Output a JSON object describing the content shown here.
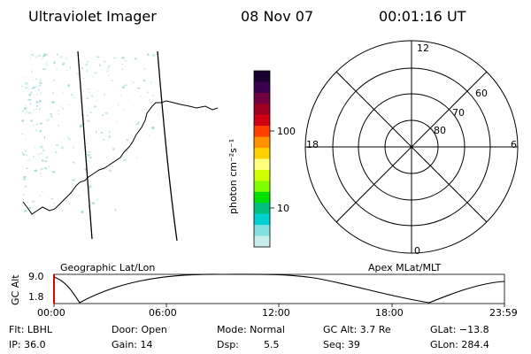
{
  "header": {
    "title": "Ultraviolet Imager",
    "date": "08 Nov 07",
    "time": "00:01:16 UT"
  },
  "colorbar": {
    "unit_label": "photon cm⁻²s⁻¹",
    "tick_100": "100",
    "tick_10": "10",
    "colors": [
      "#1a0030",
      "#3a0050",
      "#700040",
      "#a00020",
      "#d00010",
      "#ff4000",
      "#ff9000",
      "#ffd000",
      "#ffff80",
      "#d0ff00",
      "#80ff00",
      "#00e000",
      "#00c080",
      "#00d0d0",
      "#80e0e0",
      "#c8ecec"
    ]
  },
  "polar": {
    "mlt_12": "12",
    "mlt_18": "18",
    "mlt_6": "6",
    "mlt_0": "0",
    "lat_60": "60",
    "lat_70": "70",
    "lat_80": "80"
  },
  "timeline": {
    "axis_title": "GC Alt",
    "left_label": "Geographic Lat/Lon",
    "right_label": "Apex MLat/MLT",
    "y_max": "9.0",
    "y_min": "1.8",
    "times": [
      "00:00",
      "06:00",
      "12:00",
      "18:00",
      "23:59"
    ],
    "marker_color": "#e00000"
  },
  "info": {
    "filter": "Flt: LBHL",
    "ip": "IP: 36.0",
    "door": "Door: Open",
    "gain": "Gain: 14",
    "mode": "Mode: Normal",
    "dsp_label": "Dsp:",
    "dsp_value": "5.5",
    "gc_alt": "GC Alt: 3.7 Re",
    "seq": "Seq: 39",
    "glat": "GLat: −13.8",
    "glon": "GLon: 284.4"
  }
}
